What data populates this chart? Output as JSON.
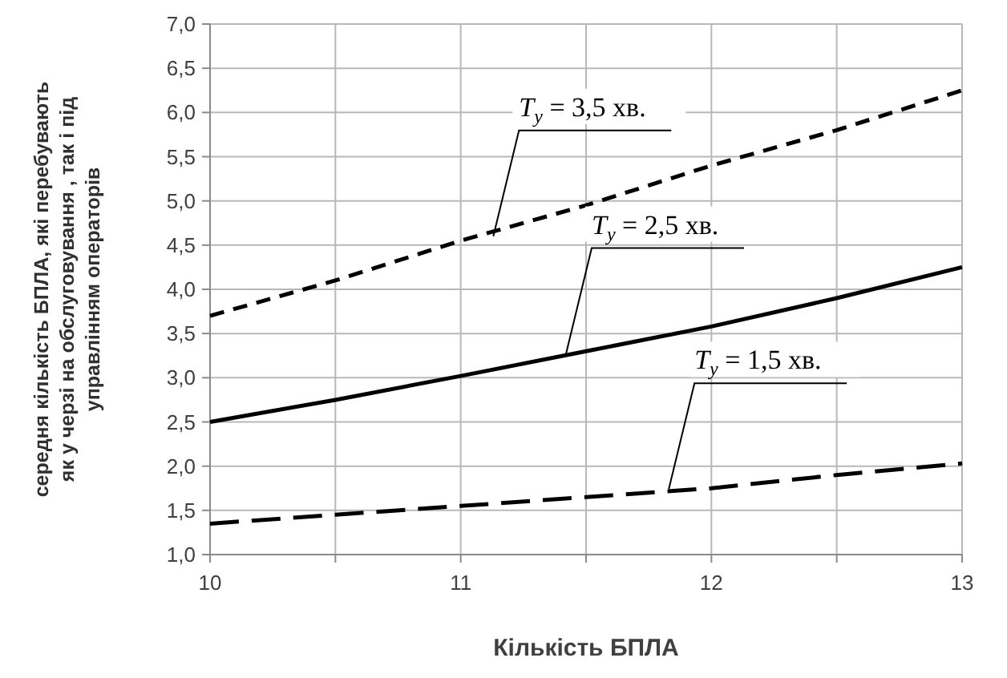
{
  "chart_data": {
    "type": "line",
    "xlabel": "Кількість БПЛА",
    "ylabel": "середня кількість  БПЛА, які перебувають\nяк у черзі на обслуговування , так і під\nуправлінням операторів",
    "x": [
      10,
      10.5,
      11,
      11.5,
      12,
      12.5,
      13
    ],
    "series": [
      {
        "color": "#000000",
        "line_style": "dashed",
        "values": [
          3.7,
          4.1,
          4.55,
          4.95,
          5.4,
          5.8,
          6.25
        ]
      },
      {
        "color": "#000000",
        "line_style": "solid",
        "values": [
          2.5,
          2.75,
          3.02,
          3.3,
          3.58,
          3.9,
          4.25
        ]
      },
      {
        "color": "#000000",
        "line_style": "longdash",
        "values": [
          1.35,
          1.45,
          1.55,
          1.65,
          1.75,
          1.9,
          2.03
        ]
      }
    ],
    "xlim": [
      10,
      13
    ],
    "xticks": [
      10,
      {
        "value": 10.5,
        "label": null
      },
      11,
      {
        "value": 11.5,
        "label": null
      },
      12,
      {
        "value": 12.5,
        "label": null
      },
      13
    ],
    "ylim": [
      1,
      7
    ],
    "yticks": [
      {
        "value": 1,
        "label": "1,0"
      },
      {
        "value": 1.5,
        "label": "1,5"
      },
      {
        "value": 2,
        "label": "2,0"
      },
      {
        "value": 2.5,
        "label": "2,5"
      },
      {
        "value": 3,
        "label": "3,0"
      },
      {
        "value": 3.5,
        "label": "3,5"
      },
      {
        "value": 4,
        "label": "4,0"
      },
      {
        "value": 4.5,
        "label": "4,5"
      },
      {
        "value": 5,
        "label": "5,0"
      },
      {
        "value": 5.5,
        "label": "5,5"
      },
      {
        "value": 6,
        "label": "6,0"
      },
      {
        "value": 6.5,
        "label": "6,5"
      },
      {
        "value": 7,
        "label": "7,0"
      }
    ],
    "grid": true,
    "marker": "none",
    "annotations": [
      {
        "text": "T$_{y}$ = 3,5 хв.",
        "x": 11.13,
        "y": 4.6
      },
      {
        "text": "T$_{y}$ = 2,5 хв.",
        "x": 11.42,
        "y": 3.27
      },
      {
        "text": "T$_{y}$ = 1,5 хв.",
        "x": 11.83,
        "y": 1.74
      }
    ]
  }
}
